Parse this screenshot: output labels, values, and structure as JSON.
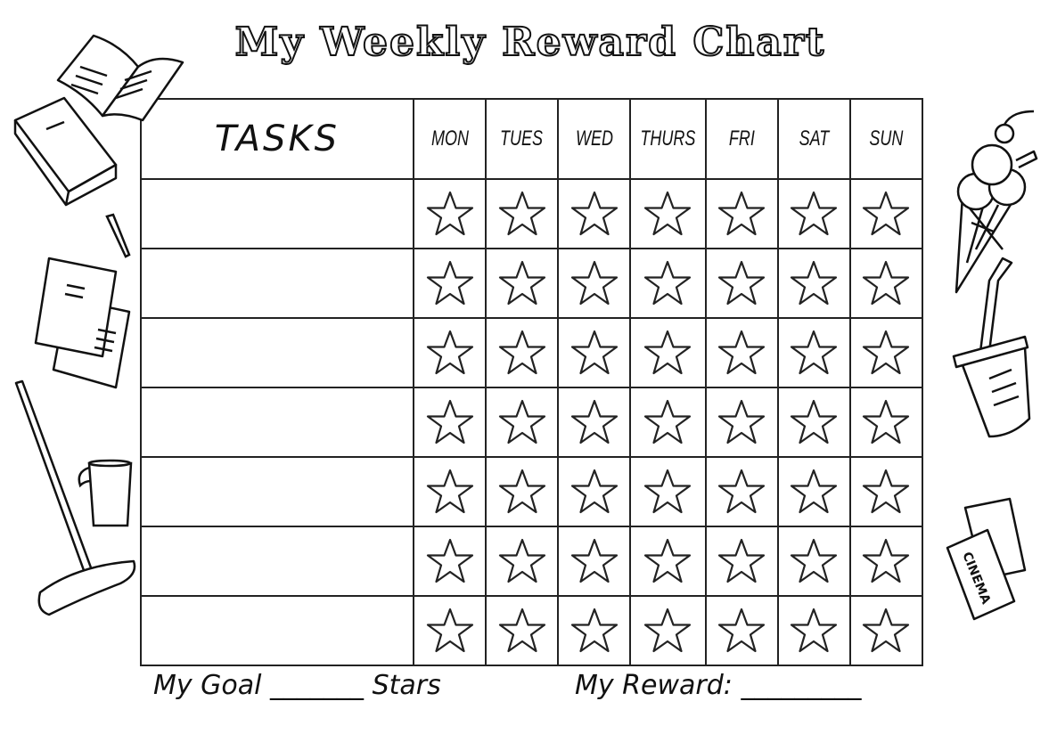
{
  "title": "My Weekly Reward Chart",
  "table": {
    "tasks_header": "TASKS",
    "days": [
      "MON",
      "TUES",
      "WED",
      "THURS",
      "FRI",
      "SAT",
      "SUN"
    ],
    "rows": [
      {
        "task": ""
      },
      {
        "task": ""
      },
      {
        "task": ""
      },
      {
        "task": ""
      },
      {
        "task": ""
      },
      {
        "task": ""
      },
      {
        "task": ""
      }
    ],
    "star_icon": "star-outline-icon"
  },
  "footer": {
    "goal_label": "My Goal",
    "goal_blank": "_______",
    "stars_label": "Stars",
    "reward_label": "My Reward:",
    "reward_blank": "_________"
  },
  "decorations": {
    "left": [
      "open-book-icon",
      "closed-book-icon",
      "pen-icon",
      "papers-icon",
      "mop-icon",
      "bucket-icon"
    ],
    "right": [
      "ice-cream-icon",
      "drink-cup-icon",
      "cinema-tickets-icon"
    ],
    "cinema_ticket_text": "CINEMA"
  }
}
